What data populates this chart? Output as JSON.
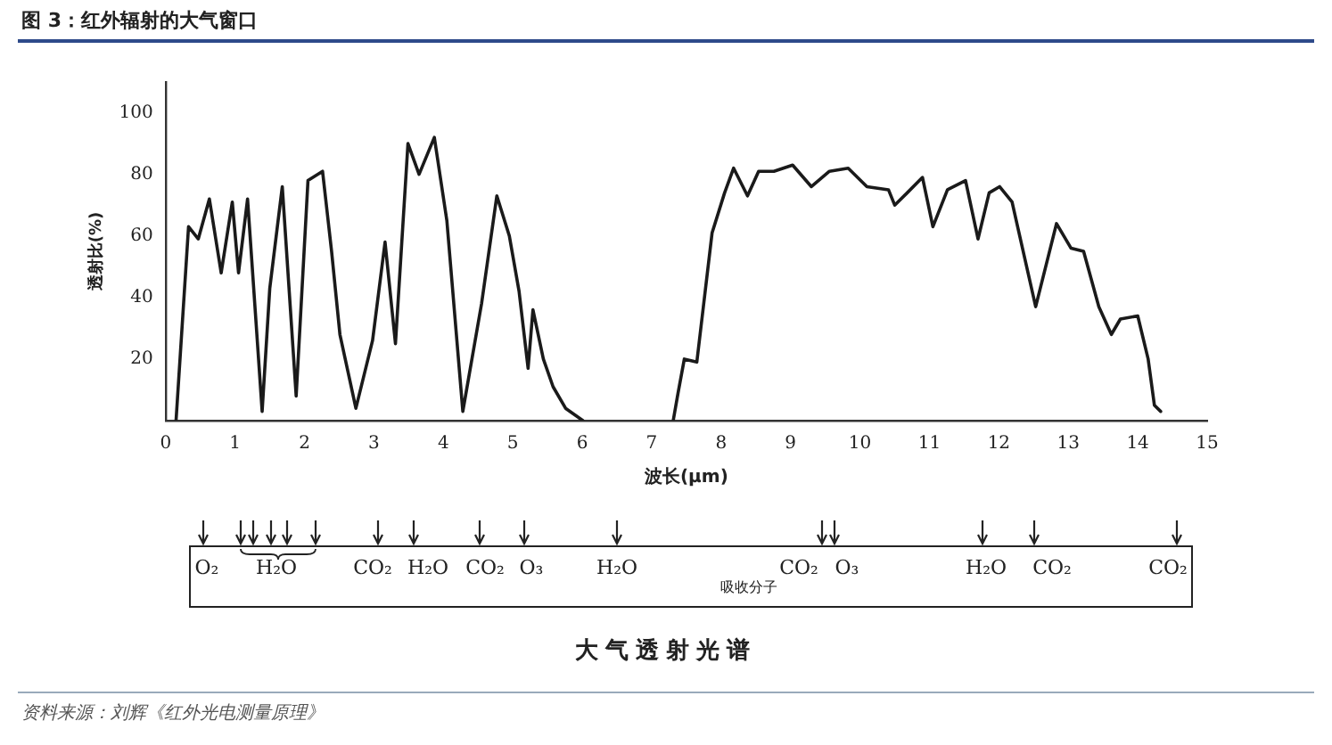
{
  "chart_data": {
    "type": "line",
    "title": "图 3：红外辐射的大气窗口",
    "xlabel": "波长(μm)",
    "ylabel": "透射比(%)",
    "x": [
      0.15,
      0.33,
      0.47,
      0.63,
      0.8,
      0.96,
      1.05,
      1.18,
      1.39,
      1.5,
      1.68,
      1.88,
      2.05,
      2.26,
      2.39,
      2.51,
      2.74,
      2.98,
      3.16,
      3.31,
      3.49,
      3.65,
      3.87,
      4.05,
      4.28,
      4.55,
      4.77,
      4.95,
      5.09,
      5.22,
      5.29,
      5.44,
      5.58,
      5.76,
      6.01,
      6.6,
      7.31,
      7.38,
      7.47,
      7.65,
      7.87,
      8.05,
      8.18,
      8.38,
      8.54,
      8.76,
      9.03,
      9.3,
      9.56,
      9.83,
      10.1,
      10.41,
      10.5,
      10.68,
      10.9,
      11.05,
      11.26,
      11.52,
      11.7,
      11.86,
      12.01,
      12.19,
      12.53,
      12.83,
      13.04,
      13.22,
      13.44,
      13.62,
      13.75,
      14.0,
      14.15,
      14.24,
      14.33
    ],
    "series": [
      {
        "color": "#1a1a1a",
        "values": [
          0,
          63,
          59,
          72,
          48,
          71,
          48,
          72,
          3,
          43,
          76,
          8,
          78,
          81,
          55,
          28,
          4,
          26,
          58,
          25,
          90,
          80,
          92,
          65,
          3,
          38,
          73,
          60,
          42,
          17,
          36,
          20,
          11,
          4,
          0,
          null,
          0,
          9,
          20,
          19,
          61,
          74,
          82,
          73,
          81,
          81,
          83,
          76,
          81,
          82,
          76,
          75,
          70,
          74,
          79,
          63,
          75,
          78,
          59,
          74,
          76,
          71,
          37,
          64,
          56,
          55,
          37,
          28,
          33,
          34,
          20,
          5,
          3
        ]
      }
    ],
    "xlim": [
      0,
      15
    ],
    "xticks": [
      0,
      1,
      2,
      3,
      4,
      5,
      6,
      7,
      8,
      9,
      10,
      11,
      12,
      13,
      14,
      15
    ],
    "ylim": [
      0,
      110
    ],
    "yticks": [
      20,
      40,
      60,
      80,
      100
    ],
    "grid": false,
    "legend": false,
    "marker": "none",
    "line_style": "solid",
    "annotations": [
      "O₂",
      "H₂O",
      "CO₂",
      "H₂O",
      "CO₂",
      "O₃",
      "H₂O",
      "CO₂",
      "O₃",
      "H₂O",
      "CO₂",
      "CO₂",
      "吸收分子",
      "大气透射光谱",
      "资料来源：刘辉《红外光电测量原理》"
    ]
  }
}
